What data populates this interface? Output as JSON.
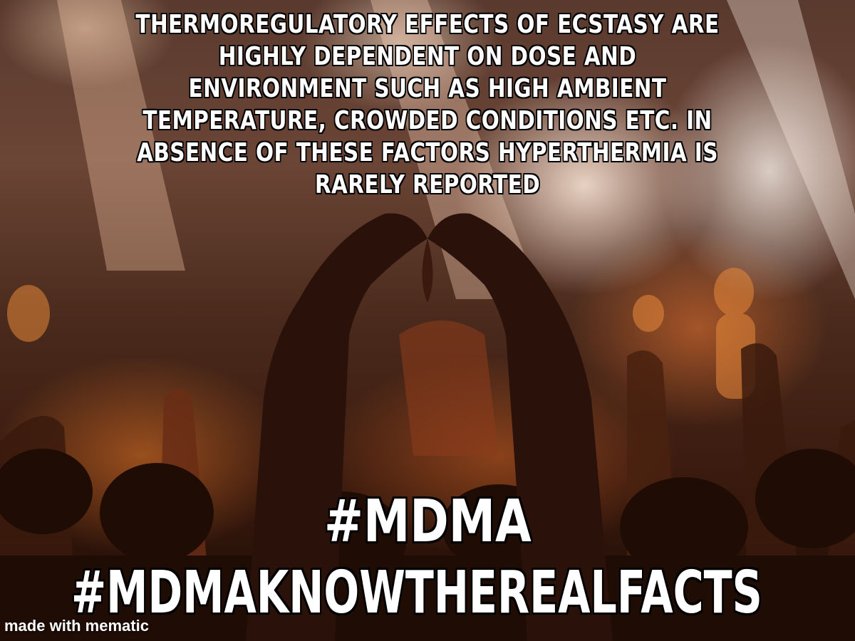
{
  "caption": {
    "top_text": "THERMOREGULATORY EFFECTS OF ECSTASY  ARE HIGHLY DEPENDENT ON DOSE AND ENVIRONMENT SUCH AS HIGH AMBIENT TEMPERATURE, CROWDED CONDITIONS ETC. IN ABSENCE OF THESE  FACTORS HYPERTHERMIA IS RARELY REPORTED"
  },
  "hashtags": [
    "#MDMA",
    "#MDMAKNOWTHEREALFACTS"
  ],
  "watermark": "made with mematic",
  "colors": {
    "caption_text": "#ffffff",
    "caption_outline": "#000000",
    "stage_light": "#ffe8dc",
    "crowd_glow": "#e07830"
  }
}
